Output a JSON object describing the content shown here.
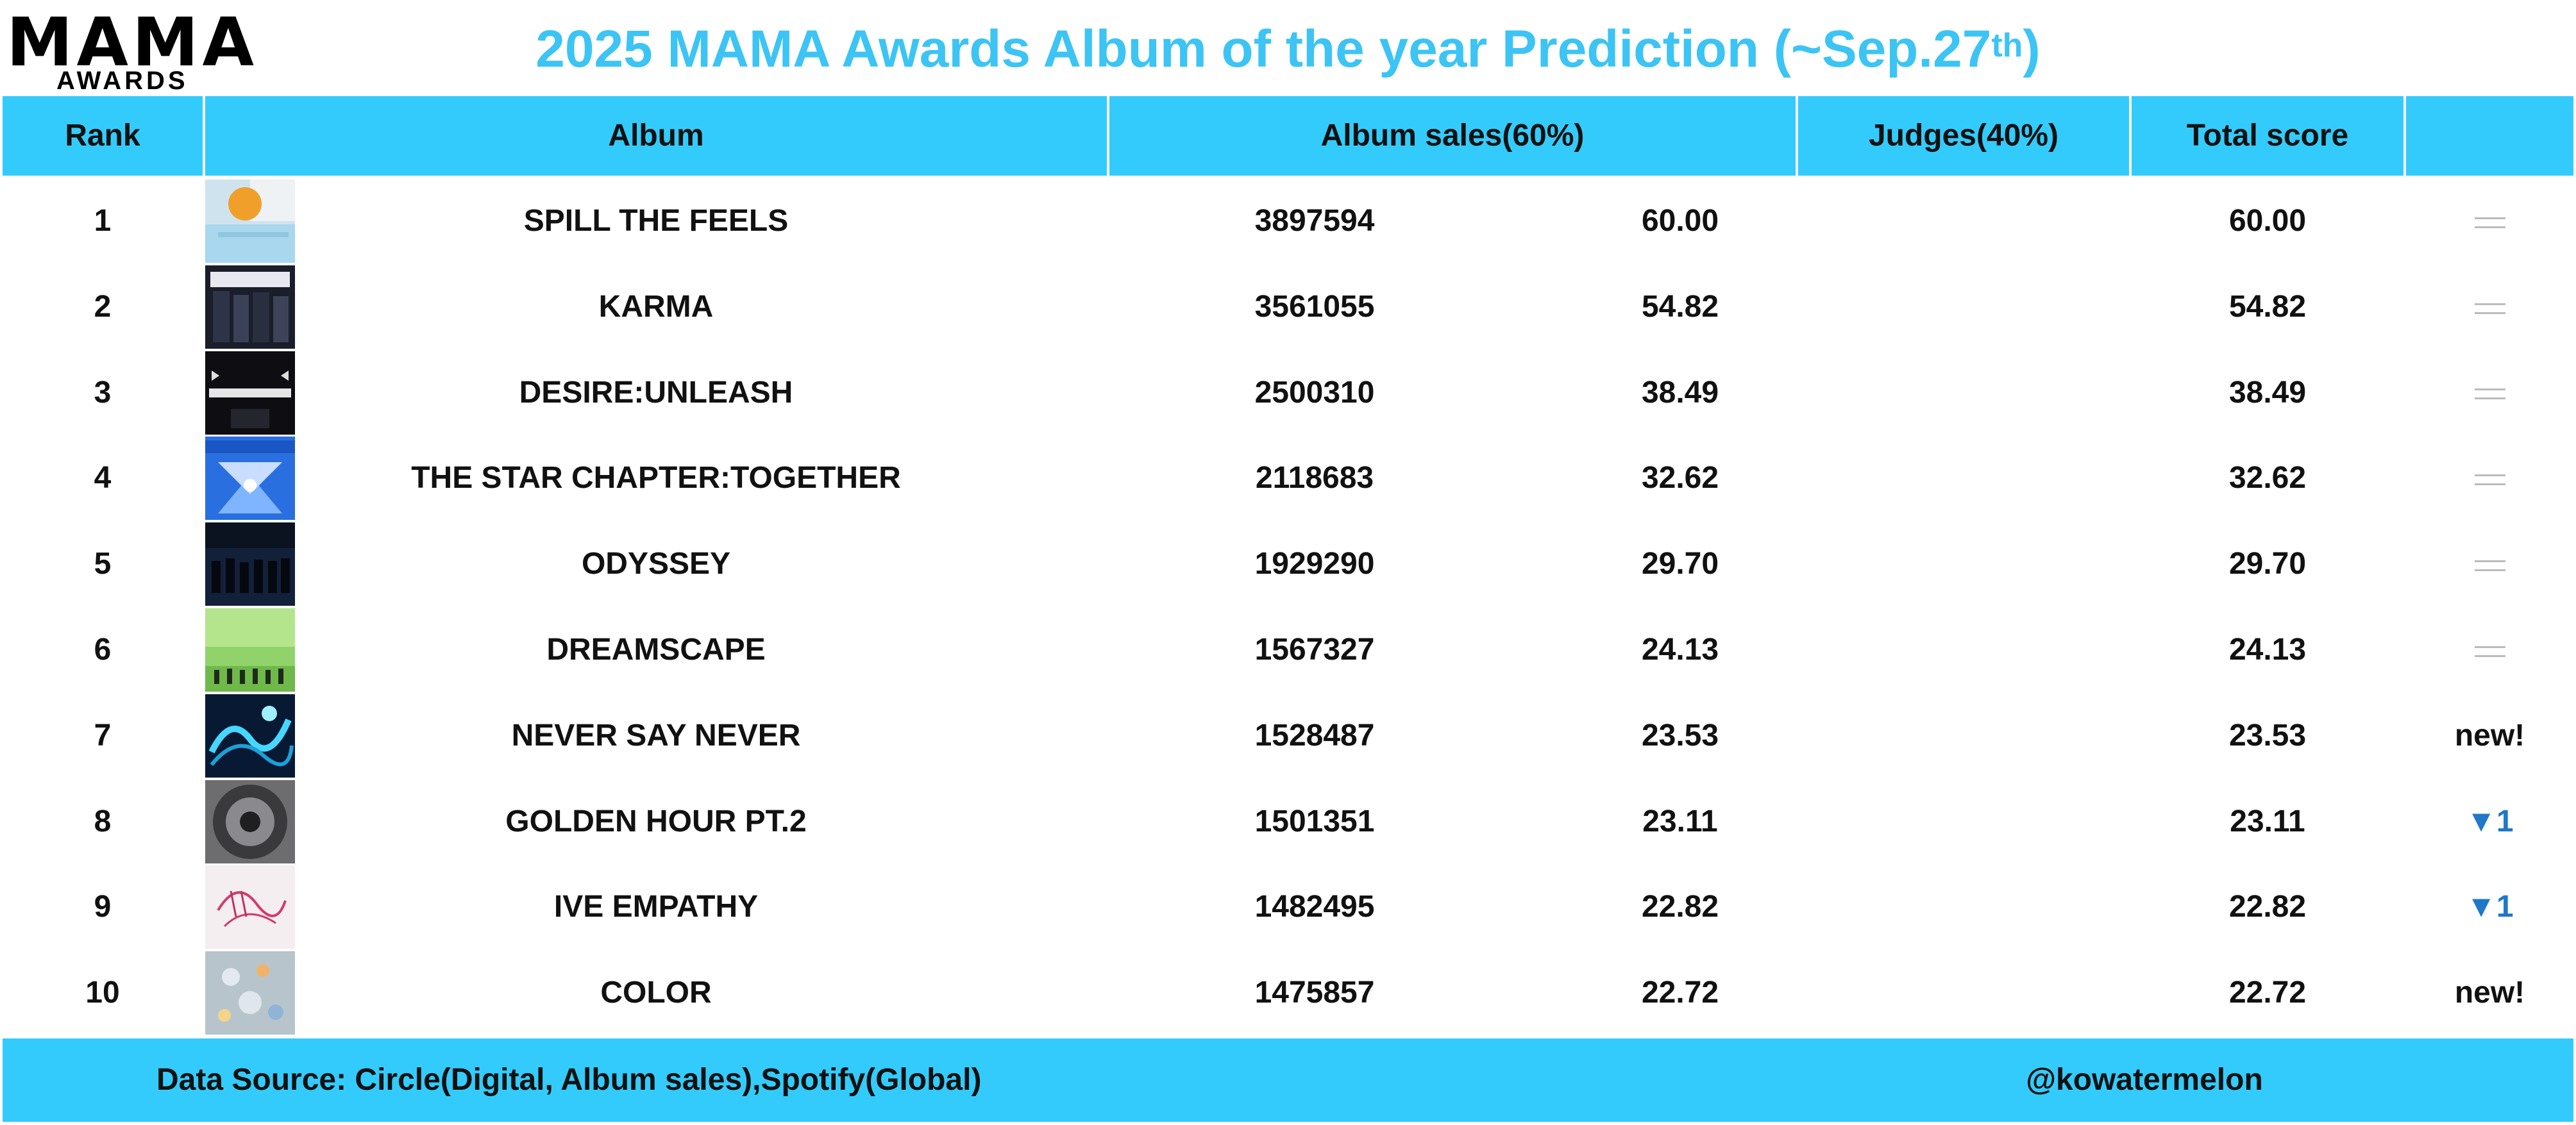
{
  "logo": {
    "main": "MAMA",
    "sub": "AWARDS"
  },
  "title": {
    "text": "2025 MAMA Awards Album of the year Prediction (~Sep.27",
    "sup": "th",
    "close": ")"
  },
  "colors": {
    "header_bg": "#33cbfb",
    "title": "#3cc4f4",
    "down_arrow": "#1f78c8",
    "equal_sign": "#bbbbbb"
  },
  "headers": {
    "rank": "Rank",
    "album": "Album",
    "sales": "Album sales(60%)",
    "judges": "Judges(40%)",
    "total": "Total score",
    "change": ""
  },
  "rows": [
    {
      "rank": "1",
      "album": "SPILL THE FEELS",
      "sales": "3897594",
      "sales_score": "60.00",
      "judges": "",
      "total": "60.00",
      "change": "",
      "change_icon": "equal-icon"
    },
    {
      "rank": "2",
      "album": "KARMA",
      "sales": "3561055",
      "sales_score": "54.82",
      "judges": "",
      "total": "54.82",
      "change": "",
      "change_icon": "equal-icon"
    },
    {
      "rank": "3",
      "album": "DESIRE:UNLEASH",
      "sales": "2500310",
      "sales_score": "38.49",
      "judges": "",
      "total": "38.49",
      "change": "",
      "change_icon": "equal-icon"
    },
    {
      "rank": "4",
      "album": "THE STAR CHAPTER:TOGETHER",
      "sales": "2118683",
      "sales_score": "32.62",
      "judges": "",
      "total": "32.62",
      "change": "",
      "change_icon": "equal-icon"
    },
    {
      "rank": "5",
      "album": "ODYSSEY",
      "sales": "1929290",
      "sales_score": "29.70",
      "judges": "",
      "total": "29.70",
      "change": "",
      "change_icon": "equal-icon"
    },
    {
      "rank": "6",
      "album": "DREAMSCAPE",
      "sales": "1567327",
      "sales_score": "24.13",
      "judges": "",
      "total": "24.13",
      "change": "",
      "change_icon": "equal-icon"
    },
    {
      "rank": "7",
      "album": "NEVER SAY NEVER",
      "sales": "1528487",
      "sales_score": "23.53",
      "judges": "",
      "total": "23.53",
      "change": "new!",
      "change_icon": ""
    },
    {
      "rank": "8",
      "album": "GOLDEN HOUR PT.2",
      "sales": "1501351",
      "sales_score": "23.11",
      "judges": "",
      "total": "23.11",
      "change": "▼1",
      "change_icon": "down-arrow-icon"
    },
    {
      "rank": "9",
      "album": "IVE EMPATHY",
      "sales": "1482495",
      "sales_score": "22.82",
      "judges": "",
      "total": "22.82",
      "change": "▼1",
      "change_icon": "down-arrow-icon"
    },
    {
      "rank": "10",
      "album": "COLOR",
      "sales": "1475857",
      "sales_score": "22.72",
      "judges": "",
      "total": "22.72",
      "change": "new!",
      "change_icon": ""
    }
  ],
  "footer": {
    "source": "Data Source: Circle(Digital, Album sales),Spotify(Global)",
    "credit": "@kowatermelon"
  }
}
